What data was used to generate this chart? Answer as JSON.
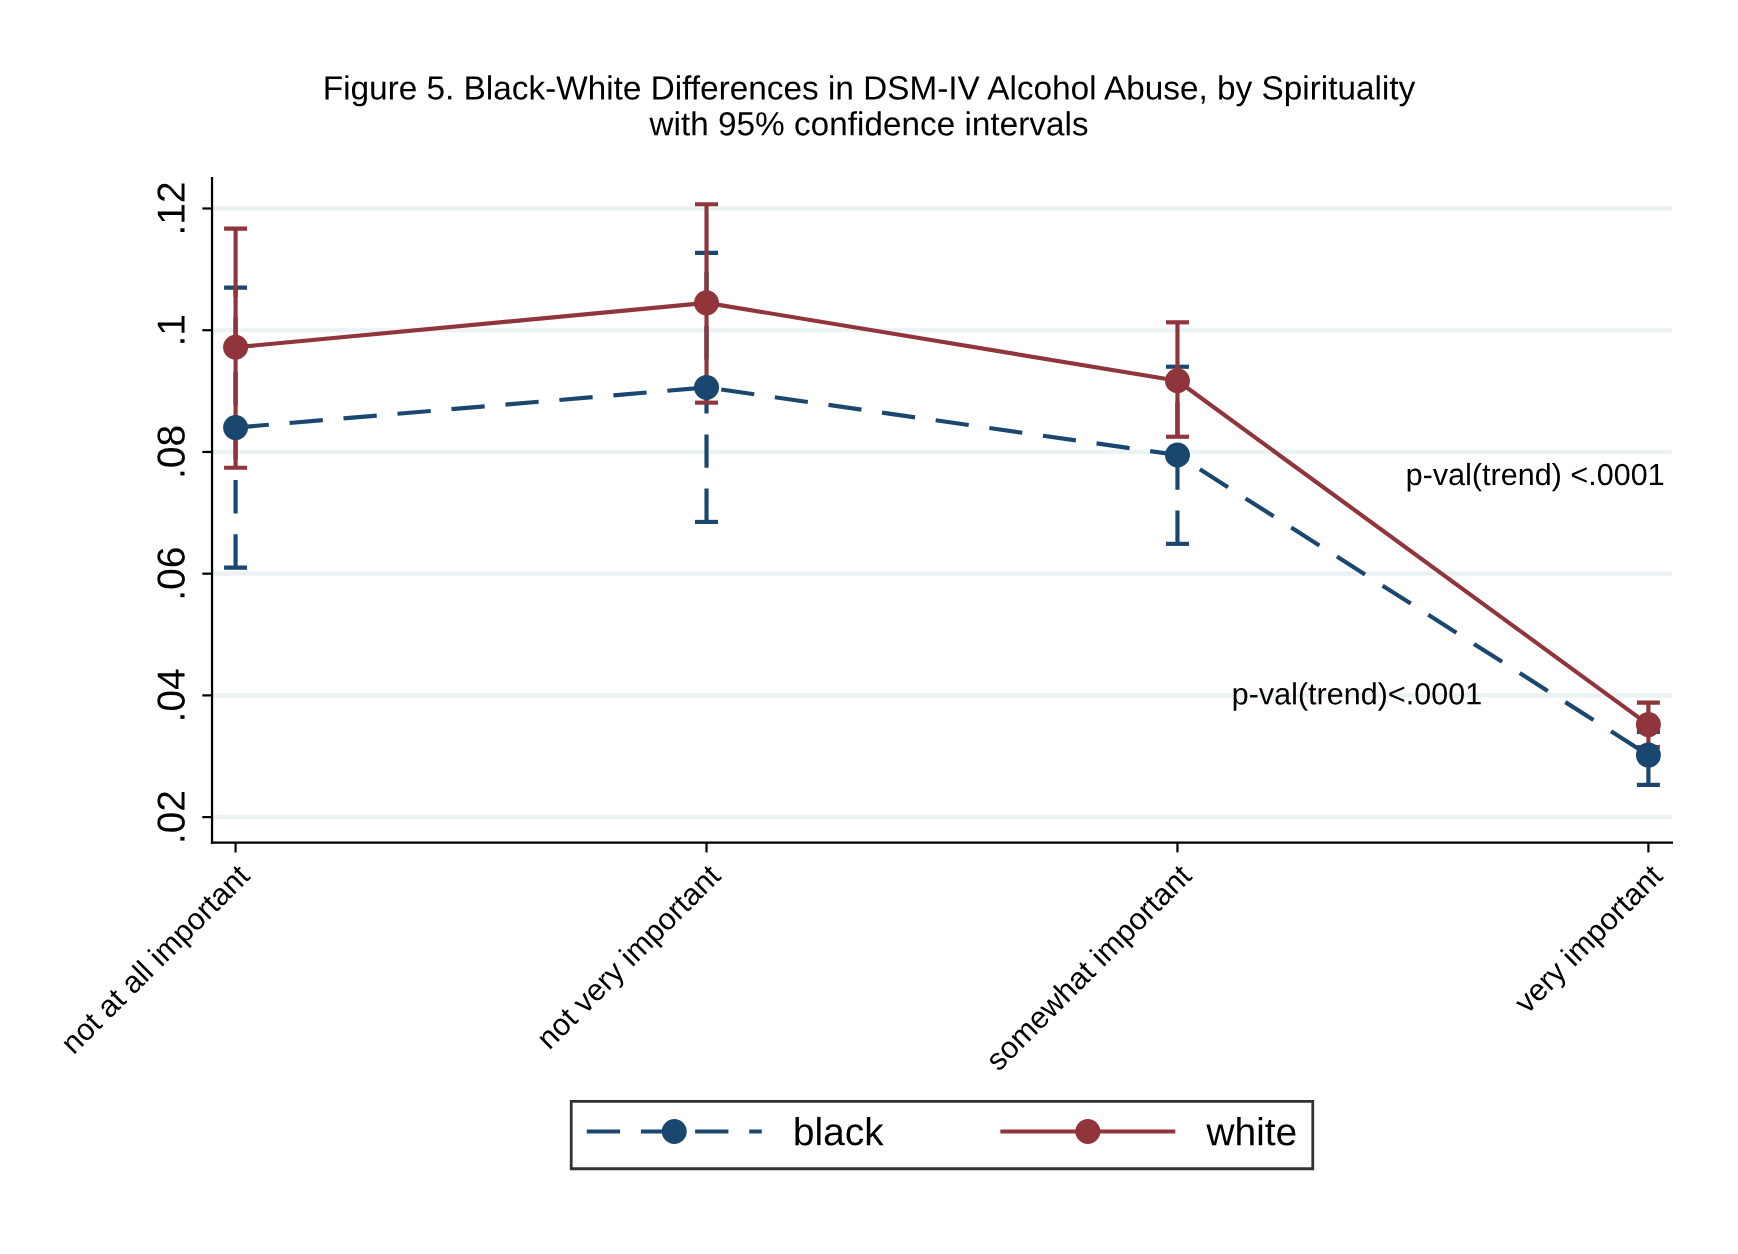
{
  "chart_data": {
    "type": "line",
    "title": "Figure 5. Black-White Differences in DSM-IV Alcohol Abuse, by Spirituality\nwith 95% confidence intervals",
    "categories": [
      "not at all important",
      "not very important",
      "somewhat important",
      "very important"
    ],
    "series": [
      {
        "name": "black",
        "color": "#1a476f",
        "line_style": "dashed",
        "values": [
          0.084,
          0.0906,
          0.0795,
          0.0302
        ],
        "errors": [
          [
            0.061,
            0.107
          ],
          [
            0.0685,
            0.1127
          ],
          [
            0.0649,
            0.094
          ],
          [
            0.0253,
            0.034
          ]
        ]
      },
      {
        "name": "white",
        "color": "#90353b",
        "line_style": "solid",
        "values": [
          0.0972,
          0.1045,
          0.0917,
          0.0352
        ],
        "errors": [
          [
            0.0774,
            0.1167
          ],
          [
            0.0881,
            0.1207
          ],
          [
            0.0825,
            0.1013
          ],
          [
            0.0315,
            0.0388
          ]
        ]
      }
    ],
    "marker": "circle",
    "ylim": [
      0.0158,
      0.125
    ],
    "yticks": [
      {
        "value": 0.02,
        "label": ".02"
      },
      {
        "value": 0.04,
        "label": ".04"
      },
      {
        "value": 0.06,
        "label": ".06"
      },
      {
        "value": 0.08,
        "label": ".08"
      },
      {
        "value": 0.1,
        "label": ".1"
      },
      {
        "value": 0.12,
        "label": ".12"
      }
    ],
    "grid": "y",
    "legend": "bottom",
    "annotations": [
      "p-val(trend) <.0001",
      "p-val(trend)<.0001"
    ]
  }
}
